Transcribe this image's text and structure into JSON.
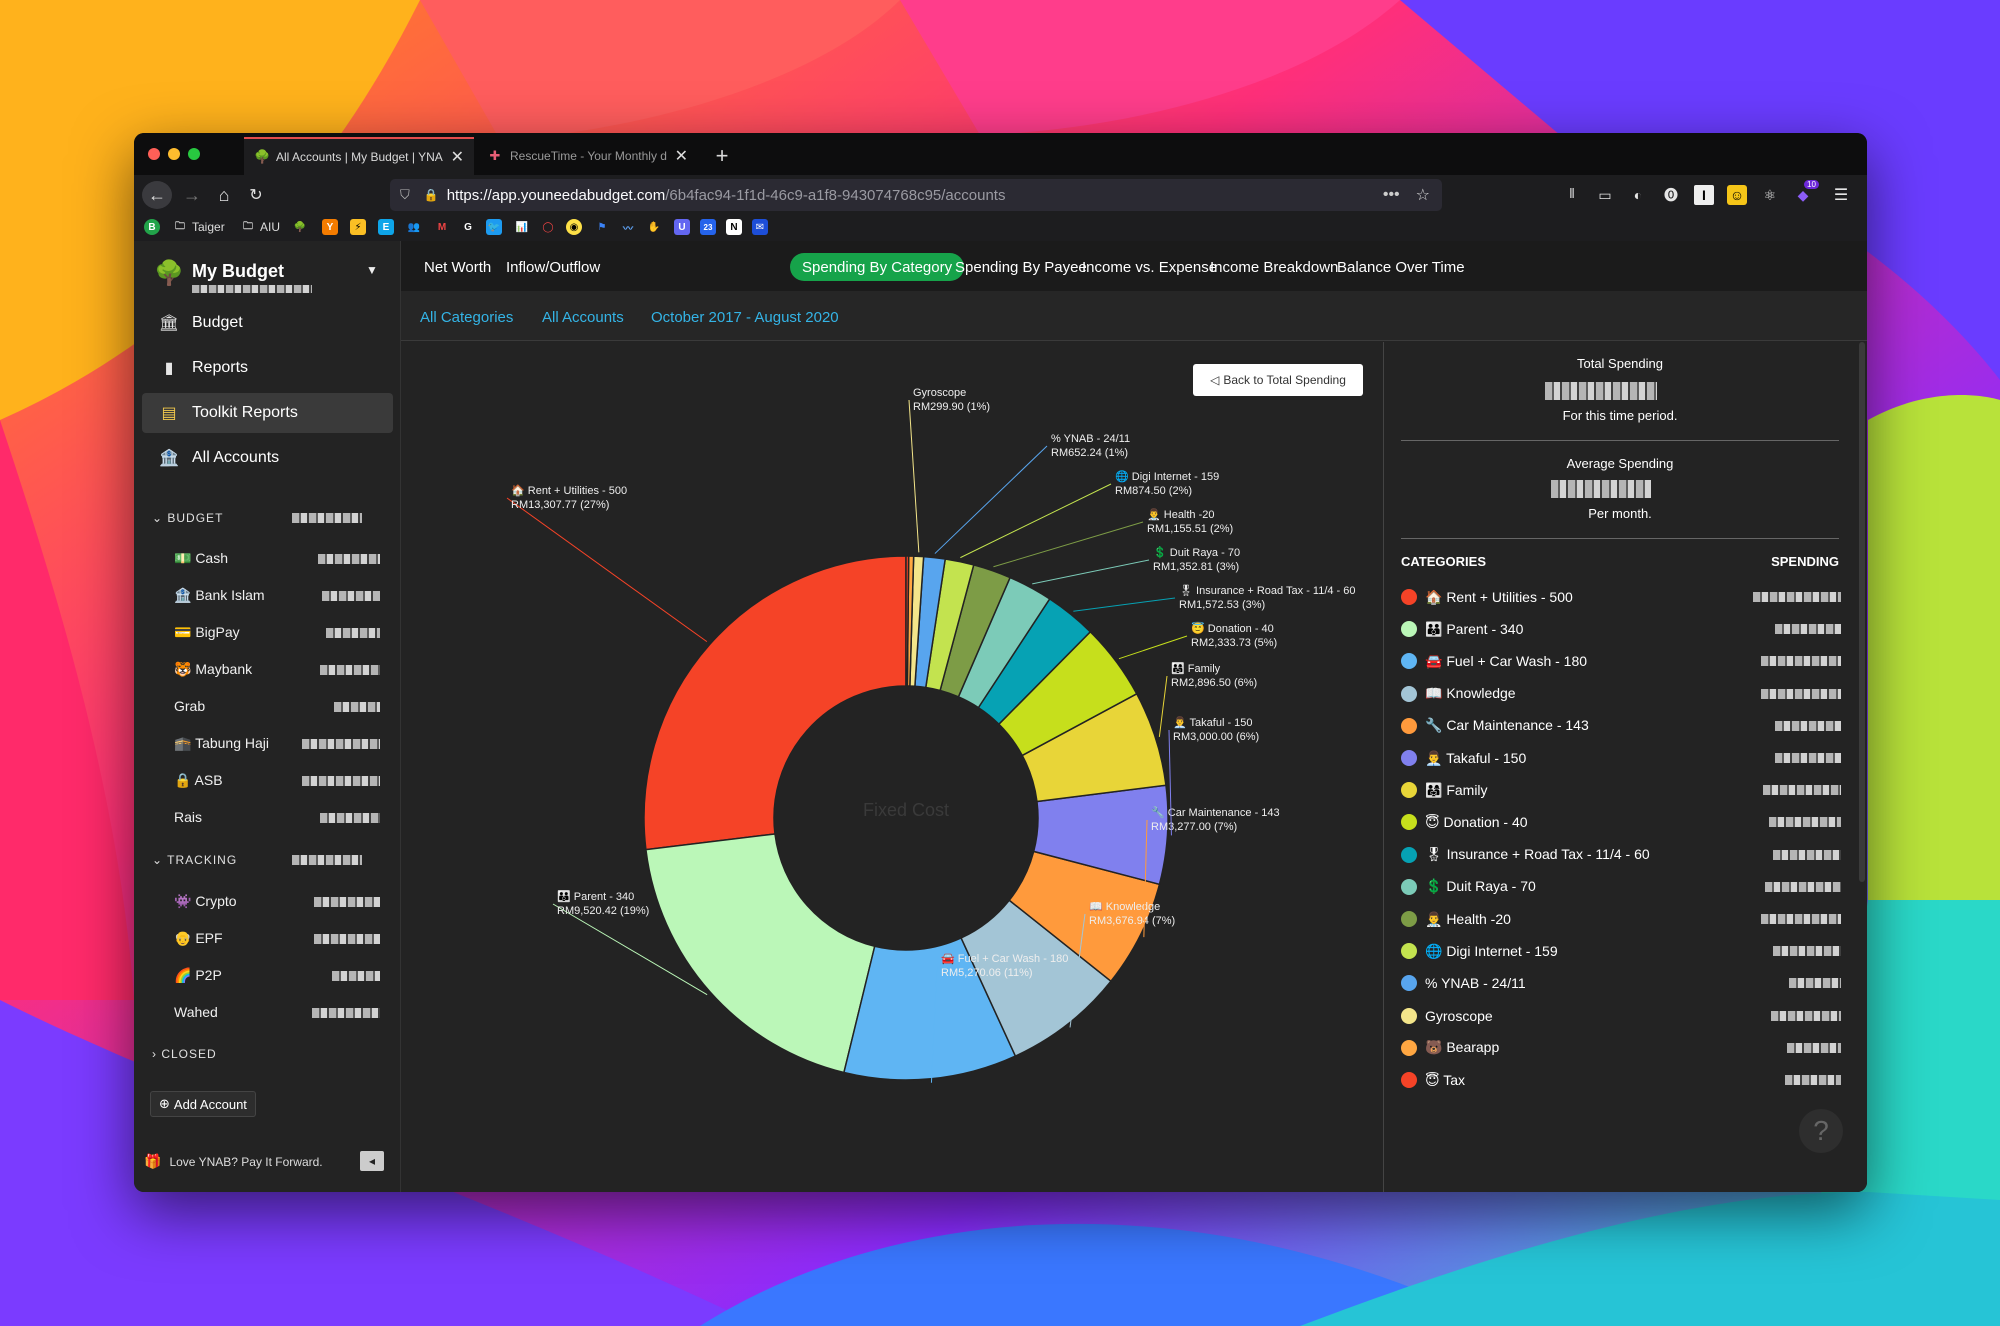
{
  "browser": {
    "tabs": [
      {
        "title": "All Accounts | My Budget | YNAB",
        "active": true
      },
      {
        "title": "RescueTime - Your Monthly dashboard",
        "active": false
      }
    ],
    "url_host": "https://app.youneedabudget.com",
    "url_path": "/6b4fac94-1f1d-46c9-a1f8-943074768c95/accounts",
    "bookmarks": [
      {
        "label": "Taiger"
      },
      {
        "label": "AIU"
      }
    ],
    "extension_badge": "10"
  },
  "sidebar": {
    "budget_name": "My Budget",
    "nav": [
      {
        "label": "Budget",
        "icon": "bank-icon"
      },
      {
        "label": "Reports",
        "icon": "bar-chart-icon"
      },
      {
        "label": "Toolkit Reports",
        "icon": "notepad-icon"
      },
      {
        "label": "All Accounts",
        "icon": "institution-icon"
      }
    ],
    "sections": {
      "budget": "BUDGET",
      "tracking": "TRACKING",
      "closed": "CLOSED"
    },
    "budget_accounts": [
      {
        "label": "💵 Cash"
      },
      {
        "label": "🏦 Bank Islam"
      },
      {
        "label": "💳 BigPay"
      },
      {
        "label": "🐯 Maybank"
      },
      {
        "label": "Grab"
      },
      {
        "label": "🕋 Tabung Haji"
      },
      {
        "label": "🔒 ASB"
      },
      {
        "label": "Rais"
      }
    ],
    "tracking_accounts": [
      {
        "label": "👾 Crypto"
      },
      {
        "label": "👴 EPF"
      },
      {
        "label": "🌈 P2P"
      },
      {
        "label": "Wahed"
      }
    ],
    "add_account": "Add Account",
    "footer": "Love YNAB? Pay It Forward."
  },
  "report_tabs": [
    {
      "label": "Net Worth",
      "selected": false
    },
    {
      "label": "Inflow/Outflow",
      "selected": false
    },
    {
      "label": "Spending By Category",
      "selected": true
    },
    {
      "label": "Spending By Payee",
      "selected": false
    },
    {
      "label": "Income vs. Expense",
      "selected": false
    },
    {
      "label": "Income Breakdown",
      "selected": false
    },
    {
      "label": "Balance Over Time",
      "selected": false
    }
  ],
  "filters": {
    "categories": "All Categories",
    "accounts": "All Accounts",
    "date_range": "October 2017 - August 2020"
  },
  "back_button": "Back to Total Spending",
  "center_label": "Fixed Cost",
  "summary": {
    "total_label": "Total Spending",
    "total_sub": "For this time period.",
    "avg_label": "Average Spending",
    "avg_sub": "Per month.",
    "categories_header": "CATEGORIES",
    "spending_header": "SPENDING"
  },
  "chart_data": {
    "type": "pie",
    "title": "",
    "slices": [
      {
        "label": "🏠 Rent + Utilities - 500",
        "value_text": "RM13,307.77 (27%)",
        "value": 13307.77,
        "color": "#f54327"
      },
      {
        "label": "👪 Parent - 340",
        "value_text": "RM9,520.42 (19%)",
        "value": 9520.42,
        "color": "#bbf7b8"
      },
      {
        "label": "🚘 Fuel + Car Wash - 180",
        "value_text": "RM5,270.06 (11%)",
        "value": 5270.06,
        "color": "#5fb5f3"
      },
      {
        "label": "📖 Knowledge",
        "value_text": "RM3,676.94 (7%)",
        "value": 3676.94,
        "color": "#a3c5d6"
      },
      {
        "label": "🔧 Car Maintenance - 143",
        "value_text": "RM3,277.00 (7%)",
        "value": 3277.0,
        "color": "#ff9a3c"
      },
      {
        "label": "👨‍💼 Takaful - 150",
        "value_text": "RM3,000.00 (6%)",
        "value": 3000.0,
        "color": "#8080ee"
      },
      {
        "label": "👨‍👩‍👧 Family",
        "value_text": "RM2,896.50 (6%)",
        "value": 2896.5,
        "color": "#e8d538"
      },
      {
        "label": "😇 Donation - 40",
        "value_text": "RM2,333.73 (5%)",
        "value": 2333.73,
        "color": "#c6df1c"
      },
      {
        "label": "🎖 Insurance + Road Tax - 11/4 - 60",
        "value_text": "RM1,572.53 (3%)",
        "value": 1572.53,
        "color": "#06a2b4"
      },
      {
        "label": "💲 Duit Raya - 70",
        "value_text": "RM1,352.81 (3%)",
        "value": 1352.81,
        "color": "#7ccbb8"
      },
      {
        "label": "👨‍⚕️ Health -20",
        "value_text": "RM1,155.51 (2%)",
        "value": 1155.51,
        "color": "#7d9c46"
      },
      {
        "label": "🌐 Digi Internet - 159",
        "value_text": "RM874.50 (2%)",
        "value": 874.5,
        "color": "#c3e34f"
      },
      {
        "label": "% YNAB - 24/11",
        "value_text": "RM652.24 (1%)",
        "value": 652.24,
        "color": "#58a5ee"
      },
      {
        "label": "Gyroscope",
        "value_text": "RM299.90 (1%)",
        "value": 299.9,
        "color": "#f3e58a"
      },
      {
        "label": "🐻 Bearapp",
        "value_text": "",
        "value": 150,
        "color": "#ffa742"
      },
      {
        "label": "😇 Tax",
        "value_text": "",
        "value": 80,
        "color": "#f54327"
      }
    ],
    "legend_position": "right"
  },
  "colors": {
    "accent_green": "#16a34a",
    "link_blue": "#34b4e6",
    "sidebar_bg": "#232323"
  }
}
